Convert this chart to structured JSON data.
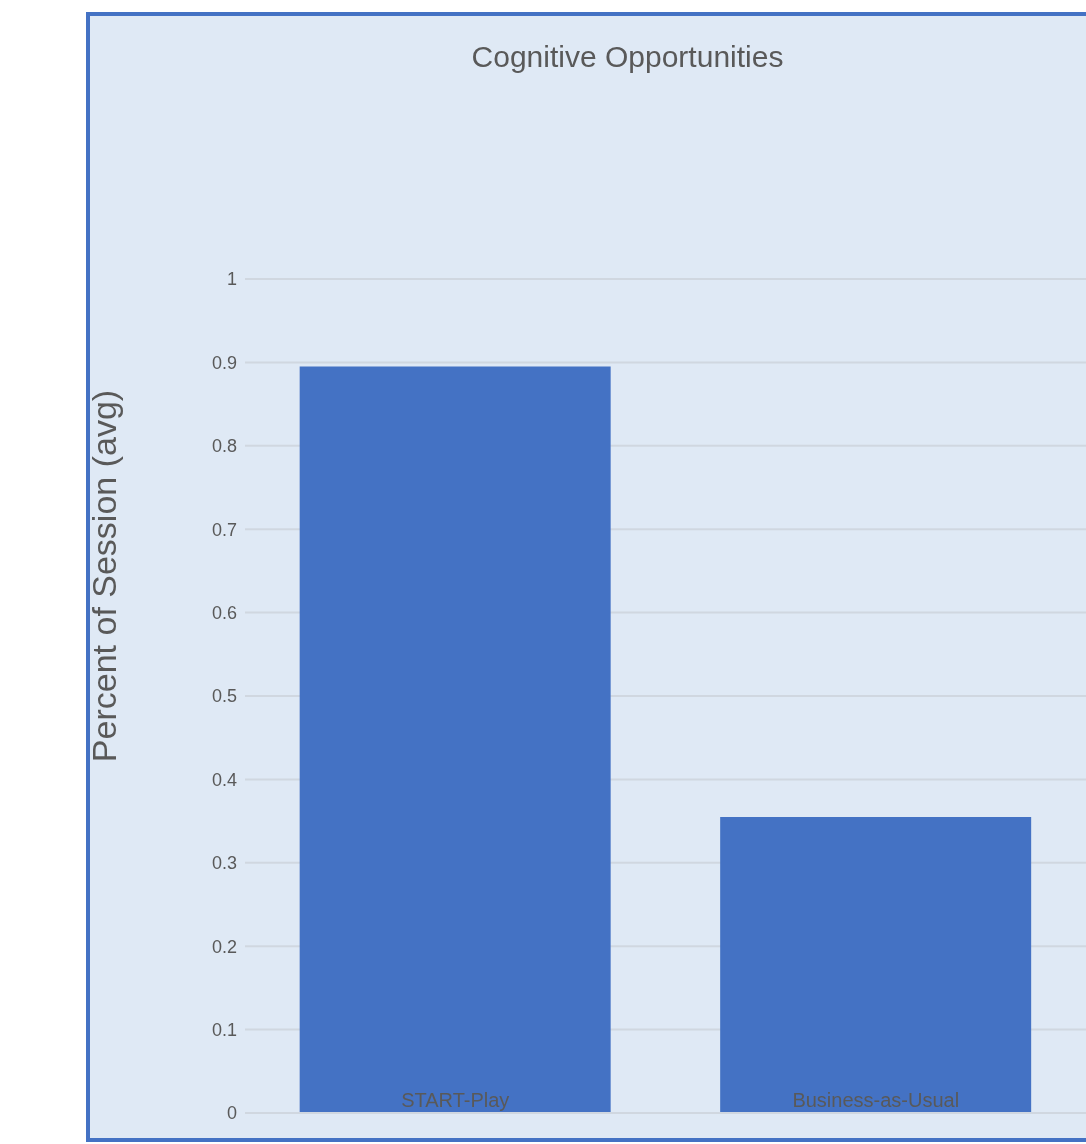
{
  "chart_data": {
    "type": "bar",
    "title": "Cognitive Opportunities",
    "ylabel": "Percent of Session (avg)",
    "categories": [
      "START-Play",
      "Business-as-Usual"
    ],
    "values": [
      0.895,
      0.355
    ],
    "color": "#4472c4",
    "ylim": [
      0,
      1
    ],
    "yticks": [
      0,
      0.1,
      0.2,
      0.3,
      0.4,
      0.5,
      0.6,
      0.7,
      0.8,
      0.9,
      1
    ],
    "grid": "y",
    "legend": false
  }
}
